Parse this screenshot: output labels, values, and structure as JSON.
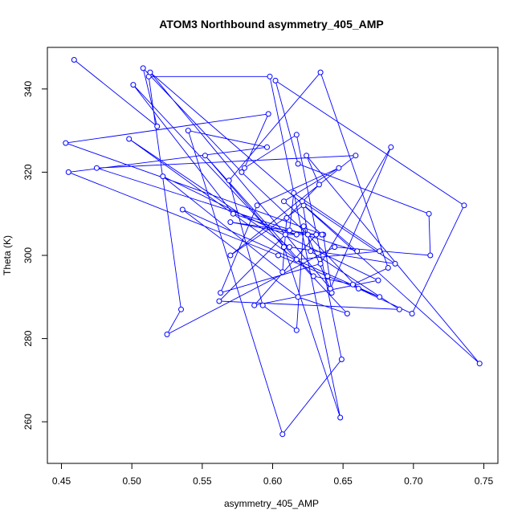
{
  "chart_data": {
    "type": "line",
    "title": "ATOM3 Northbound asymmetry_405_AMP",
    "xlabel": "asymmetry_405_AMP",
    "ylabel": "Theta (K)",
    "xlim": [
      0.44,
      0.76
    ],
    "ylim": [
      250,
      350
    ],
    "xticks": [
      0.45,
      0.5,
      0.55,
      0.6,
      0.65,
      0.7,
      0.75
    ],
    "xtick_labels": [
      "0.45",
      "0.50",
      "0.55",
      "0.60",
      "0.65",
      "0.70",
      "0.75"
    ],
    "yticks": [
      260,
      280,
      300,
      320,
      340
    ],
    "ytick_labels": [
      "260",
      "280",
      "300",
      "320",
      "340"
    ],
    "grid": false,
    "colors": {
      "series": "#0000ff",
      "frame": "#000000"
    },
    "series": [
      {
        "markers": "open-circle",
        "x": [
          0.459,
          0.518,
          0.508,
          0.578,
          0.625,
          0.661,
          0.699,
          0.736,
          0.602,
          0.618,
          0.711,
          0.712,
          0.644,
          0.525,
          0.535,
          0.512,
          0.598,
          0.648,
          0.608,
          0.552,
          0.629,
          0.657,
          0.682,
          0.634,
          0.569,
          0.593,
          0.617,
          0.622,
          0.642,
          0.636,
          0.453,
          0.597,
          0.58,
          0.617,
          0.649,
          0.607,
          0.54,
          0.596,
          0.455,
          0.604,
          0.639,
          0.676,
          0.536,
          0.618,
          0.653,
          0.501,
          0.572,
          0.617,
          0.57,
          0.631,
          0.587,
          0.675,
          0.522,
          0.607,
          0.61,
          0.633,
          0.624,
          0.747,
          0.622,
          0.57,
          0.659,
          0.475,
          0.66,
          0.513,
          0.641,
          0.684,
          0.634,
          0.563,
          0.589,
          0.647,
          0.608,
          0.635,
          0.609,
          0.562,
          0.69,
          0.627,
          0.621,
          0.687,
          0.612,
          0.498,
          0.617,
          0.676,
          0.615,
          0.612
        ],
        "y": [
          347,
          331,
          345,
          320,
          305,
          292,
          286,
          312,
          342,
          322,
          310,
          300,
          302,
          281,
          287,
          343,
          343,
          261,
          302,
          324,
          295,
          293,
          297,
          344,
          318,
          288,
          282,
          307,
          291,
          305,
          327,
          334,
          321,
          329,
          275,
          257,
          330,
          326,
          320,
          300,
          295,
          290,
          311,
          290,
          286,
          341,
          310,
          305,
          308,
          305,
          288,
          294,
          319,
          296,
          309,
          317,
          324,
          274,
          312,
          300,
          324,
          321,
          301,
          344,
          292,
          326,
          298,
          291,
          312,
          321,
          313,
          305,
          305,
          289,
          287,
          301,
          313,
          298,
          302,
          328,
          299,
          301,
          315,
          306
        ]
      }
    ]
  }
}
